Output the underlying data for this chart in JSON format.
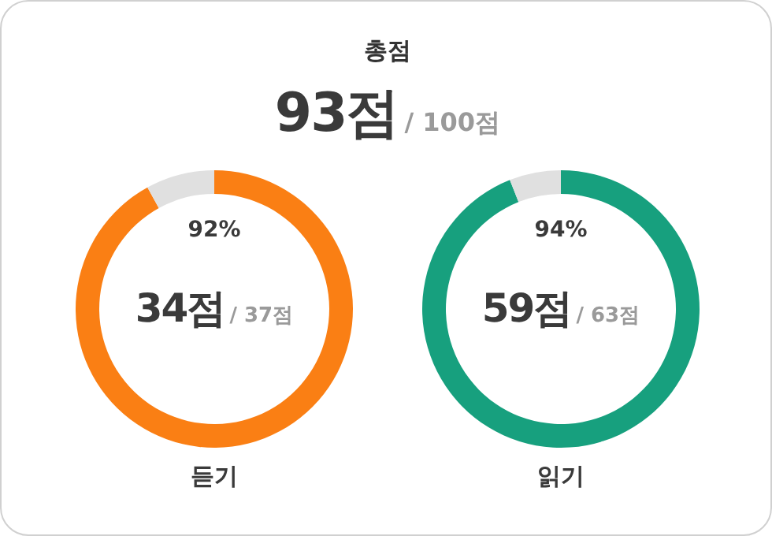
{
  "chart_data": [
    {
      "type": "other",
      "title": "총점",
      "annotations": [
        "93점",
        "/ 100점"
      ]
    },
    {
      "type": "donut",
      "categories": [
        null,
        null
      ],
      "values": [
        92,
        8
      ],
      "colors": [
        "#fa7f14",
        "#e0e0e0"
      ],
      "value_labels": [
        "92%",
        null
      ],
      "annotations": [
        "34점",
        "/ 37점"
      ],
      "xlabel": "듣기"
    },
    {
      "type": "donut",
      "categories": [
        null,
        null
      ],
      "values": [
        94,
        6
      ],
      "colors": [
        "#17a07e",
        "#e0e0e0"
      ],
      "value_labels": [
        "94%",
        null
      ],
      "annotations": [
        "59점",
        "/ 63점"
      ],
      "xlabel": "읽기"
    }
  ]
}
